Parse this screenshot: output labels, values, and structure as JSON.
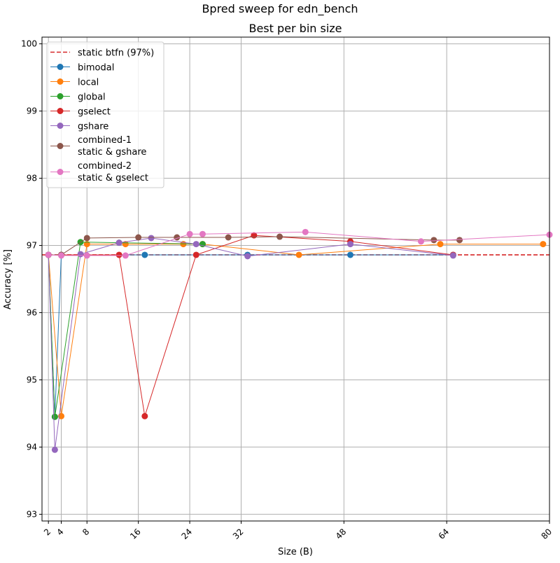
{
  "chart_data": {
    "type": "line",
    "suptitle": "Bpred sweep for edn_bench",
    "title": "Best per bin size",
    "xlabel": "Size (B)",
    "ylabel": "Accuracy [%]",
    "xlim": [
      1,
      80
    ],
    "ylim": [
      92.9,
      100.1
    ],
    "xticks": [
      2,
      4,
      8,
      16,
      24,
      32,
      48,
      64,
      80
    ],
    "yticks": [
      93,
      94,
      95,
      96,
      97,
      98,
      99,
      100
    ],
    "grid": true,
    "legend_position": "top-left",
    "reference_line": {
      "name": "static btfn (97%)",
      "y": 96.86,
      "color": "#d62728",
      "style": "dashed"
    },
    "series": [
      {
        "name": "bimodal",
        "color": "#1f77b4",
        "x": [
          2,
          3,
          4,
          17,
          33,
          49,
          65
        ],
        "y": [
          96.86,
          94.45,
          96.86,
          96.86,
          96.86,
          96.86,
          96.86
        ]
      },
      {
        "name": "local",
        "color": "#ff7f0e",
        "x": [
          2,
          4,
          8,
          14,
          23,
          26,
          41,
          63,
          79
        ],
        "y": [
          96.86,
          94.46,
          97.02,
          97.02,
          97.02,
          97.02,
          96.86,
          97.02,
          97.02
        ]
      },
      {
        "name": "global",
        "color": "#2ca02c",
        "x": [
          2,
          3,
          7,
          13,
          26
        ],
        "y": [
          96.86,
          94.45,
          97.05,
          97.04,
          97.02
        ]
      },
      {
        "name": "gselect",
        "color": "#d62728",
        "x": [
          2,
          4,
          13,
          17,
          25,
          34,
          49,
          65
        ],
        "y": [
          96.86,
          96.86,
          96.86,
          94.46,
          96.86,
          97.15,
          97.06,
          96.86
        ]
      },
      {
        "name": "gshare",
        "color": "#9467bd",
        "x": [
          2,
          3,
          7,
          13,
          18,
          25,
          33,
          49,
          65
        ],
        "y": [
          96.86,
          93.96,
          96.87,
          97.04,
          97.11,
          97.02,
          96.84,
          97.02,
          96.85
        ]
      },
      {
        "name": "combined-1\nstatic & gshare",
        "color": "#8c564b",
        "x": [
          2,
          4,
          8,
          16,
          22,
          30,
          38,
          62,
          66
        ],
        "y": [
          96.86,
          96.86,
          97.11,
          97.12,
          97.12,
          97.12,
          97.13,
          97.08,
          97.08
        ]
      },
      {
        "name": "combined-2\nstatic & gselect",
        "color": "#e377c2",
        "x": [
          2,
          4,
          8,
          14,
          24,
          26,
          42,
          60,
          80
        ],
        "y": [
          96.86,
          96.85,
          96.85,
          96.85,
          97.17,
          97.17,
          97.2,
          97.06,
          97.16
        ]
      }
    ]
  }
}
